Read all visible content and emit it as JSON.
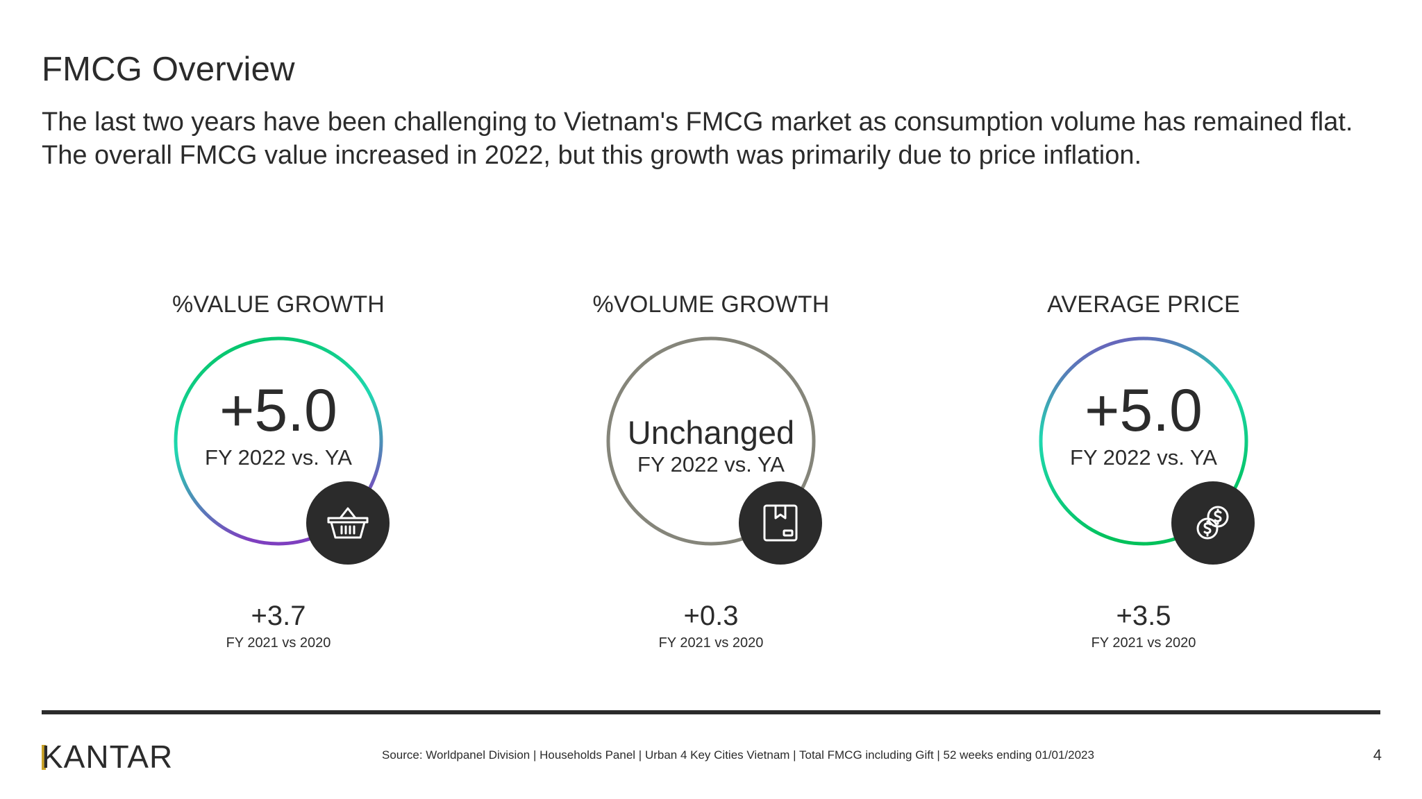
{
  "slide": {
    "title": "FMCG Overview",
    "subtitle": "The last two years have been challenging to Vietnam's FMCG market as consumption volume has remained flat. The overall FMCG value increased in 2022, but this growth was primarily due to price inflation."
  },
  "kpis": [
    {
      "label": "%VALUE GROWTH",
      "value": "+5.0",
      "period": "FY 2022 vs. YA",
      "icon": "shopping-basket-icon",
      "ring_colors": [
        "#00c15a",
        "#1fd8b0",
        "#7e3fbf"
      ],
      "prev_value": "+3.7",
      "prev_period": "FY 2021 vs 2020"
    },
    {
      "label": "%VOLUME GROWTH",
      "value": "Unchanged",
      "period": "FY 2022 vs. YA",
      "icon": "package-box-icon",
      "ring_colors": [
        "#85857a"
      ],
      "prev_value": "+0.3",
      "prev_period": "FY 2021 vs 2020"
    },
    {
      "label": "AVERAGE PRICE",
      "value": "+5.0",
      "period": "FY 2022 vs. YA",
      "icon": "coins-icon",
      "ring_colors": [
        "#7e3fbf",
        "#1fd8b0",
        "#00c15a"
      ],
      "prev_value": "+3.5",
      "prev_period": "FY 2021 vs 2020"
    }
  ],
  "footer": {
    "logo": "KANTAR",
    "source": "Source: Worldpanel Division | Households Panel | Urban 4 Key Cities Vietnam | Total FMCG including Gift | 52 weeks ending 01/01/2023",
    "page": "4"
  }
}
